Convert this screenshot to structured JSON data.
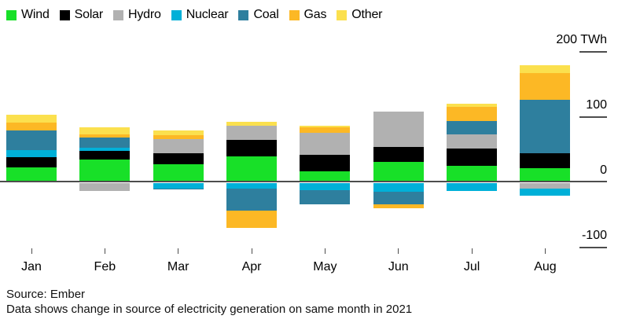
{
  "chart_data": {
    "type": "bar",
    "stacked": true,
    "title": "",
    "xlabel": "",
    "ylabel": "TWh",
    "unit": "TWh",
    "legend_position": "top",
    "grid": false,
    "categories": [
      "Jan",
      "Feb",
      "Mar",
      "Apr",
      "May",
      "Jun",
      "Jul",
      "Aug"
    ],
    "series": [
      {
        "name": "Wind",
        "color": "#18e028",
        "values": [
          23,
          35,
          28,
          40,
          17,
          31,
          25,
          22
        ]
      },
      {
        "name": "Solar",
        "color": "#000000",
        "values": [
          16,
          13,
          17,
          25,
          25,
          23,
          27,
          23
        ]
      },
      {
        "name": "Hydro",
        "color": "#b1b1b1",
        "values": [
          0,
          -12,
          21,
          22,
          34,
          54,
          21,
          -8
        ]
      },
      {
        "name": "Nuclear",
        "color": "#00b0d8",
        "values": [
          10,
          5,
          -8,
          -8,
          -11,
          -13,
          -12,
          -11
        ]
      },
      {
        "name": "Coal",
        "color": "#2e7f9e",
        "values": [
          30,
          16,
          -2,
          -34,
          -22,
          -19,
          21,
          81
        ]
      },
      {
        "name": "Gas",
        "color": "#fcb825",
        "values": [
          13,
          5,
          6,
          -27,
          8,
          -7,
          22,
          42
        ]
      },
      {
        "name": "Other",
        "color": "#fbe04e",
        "values": [
          12,
          10,
          7,
          6,
          3,
          0,
          5,
          12
        ]
      }
    ],
    "ylim": [
      -100,
      200
    ],
    "yticks": [
      {
        "value": 200,
        "label": "200 TWh"
      },
      {
        "value": 100,
        "label": "100"
      },
      {
        "value": 0,
        "label": "0"
      },
      {
        "value": -100,
        "label": "-100"
      }
    ]
  },
  "footer": {
    "source": "Source: Ember",
    "note": "Data shows change in source of electricity generation on same month in 2021"
  },
  "colors": {
    "axis": "#4d4d4d",
    "background": "#ffffff"
  }
}
